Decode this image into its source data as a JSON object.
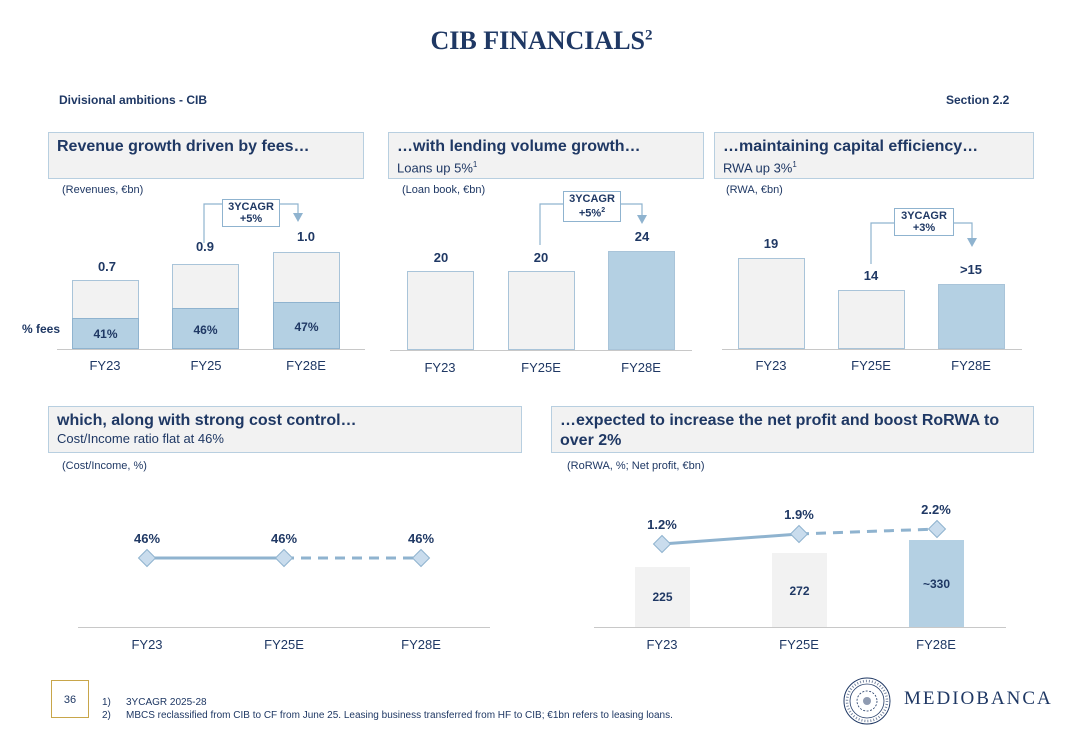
{
  "header": {
    "title": "CIB FINANCIALS",
    "title_sup": "2",
    "left": "Divisional ambitions - CIB",
    "right": "Section 2.2"
  },
  "panel1": {
    "heading": "Revenue growth driven by fees…",
    "unit": "(Revenues, €bn)",
    "fees_label": "% fees",
    "cagr_line1": "3YCAGR",
    "cagr_line2": "+5%",
    "categories": [
      "FY23",
      "FY25",
      "FY28E"
    ],
    "values": [
      "0.7",
      "0.9",
      "1.0"
    ],
    "fees": [
      "41%",
      "46%",
      "47%"
    ]
  },
  "panel2": {
    "heading": "…with lending volume growth…",
    "sub": "Loans up 5%",
    "sub_sup": "1",
    "unit": "(Loan book, €bn)",
    "cagr_line1": "3YCAGR",
    "cagr_line2": "+5%",
    "cagr_sup": "2",
    "categories": [
      "FY23",
      "FY25E",
      "FY28E"
    ],
    "values": [
      "20",
      "20",
      "24"
    ]
  },
  "panel3": {
    "heading": "…maintaining capital efficiency…",
    "sub": "RWA up 3%",
    "sub_sup": "1",
    "unit": "(RWA, €bn)",
    "cagr_line1": "3YCAGR",
    "cagr_line2": "+3%",
    "categories": [
      "FY23",
      "FY25E",
      "FY28E"
    ],
    "values": [
      "19",
      "14",
      ">15"
    ]
  },
  "panel4": {
    "heading": "which, along with strong cost control…",
    "sub": "Cost/Income ratio flat at 46%",
    "unit": "(Cost/Income, %)",
    "categories": [
      "FY23",
      "FY25E",
      "FY28E"
    ],
    "values": [
      "46%",
      "46%",
      "46%"
    ]
  },
  "panel5": {
    "heading": "…expected to increase the net profit and boost RoRWA to over 2%",
    "unit": "(RoRWA, %; Net profit, €bn)",
    "categories": [
      "FY23",
      "FY25E",
      "FY28E"
    ],
    "rorwa": [
      "1.2%",
      "1.9%",
      "2.2%"
    ],
    "profit": [
      "225",
      "272",
      "~330"
    ]
  },
  "chart_data": [
    {
      "type": "bar",
      "title": "Revenue growth driven by fees…",
      "ylabel": "Revenues, €bn",
      "categories": [
        "FY23",
        "FY25",
        "FY28E"
      ],
      "values": [
        0.7,
        0.9,
        1.0
      ],
      "series": [
        {
          "name": "% fees",
          "values": [
            41,
            46,
            47
          ]
        }
      ]
    },
    {
      "type": "bar",
      "title": "…with lending volume growth…",
      "ylabel": "Loan book, €bn",
      "categories": [
        "FY23",
        "FY25E",
        "FY28E"
      ],
      "values": [
        20,
        20,
        24
      ]
    },
    {
      "type": "bar",
      "title": "…maintaining capital efficiency…",
      "ylabel": "RWA, €bn",
      "categories": [
        "FY23",
        "FY25E",
        "FY28E"
      ],
      "values": [
        19,
        14,
        15
      ]
    },
    {
      "type": "line",
      "title": "which, along with strong cost control…",
      "ylabel": "Cost/Income, %",
      "categories": [
        "FY23",
        "FY25E",
        "FY28E"
      ],
      "values": [
        46,
        46,
        46
      ]
    },
    {
      "type": "bar",
      "title": "…expected to increase the net profit and boost RoRWA to over 2%",
      "categories": [
        "FY23",
        "FY25E",
        "FY28E"
      ],
      "series": [
        {
          "name": "Net profit, €bn",
          "values": [
            225,
            272,
            330
          ]
        },
        {
          "name": "RoRWA, %",
          "values": [
            1.2,
            1.9,
            2.2
          ]
        }
      ]
    }
  ],
  "footer": {
    "page": "36",
    "note1_num": "1)",
    "note1": "3YCAGR 2025-28",
    "note2_num": "2)",
    "note2": "MBCS reclassified from CIB to CF from June 25. Leasing business transferred from HF to CIB; €1bn refers to leasing loans.",
    "logo": "MEDIOBANCA"
  },
  "colors": {
    "navy": "#1f3864",
    "bar_light": "#f2f2f2",
    "bar_blue": "#b4d0e3",
    "gold": "#c8a64a"
  }
}
